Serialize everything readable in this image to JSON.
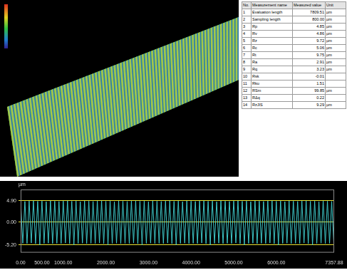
{
  "table": {
    "header": [
      "No.",
      "Measurement name",
      "Measured value",
      "Unit"
    ],
    "rows": [
      [
        "1",
        "Evaluation length",
        "7809.51",
        "µm"
      ],
      [
        "2",
        "Sampling length",
        "800.00",
        "µm"
      ],
      [
        "3",
        "Rp",
        "4.85",
        "µm"
      ],
      [
        "4",
        "Rv",
        "4.86",
        "µm"
      ],
      [
        "5",
        "Rz",
        "9.72",
        "µm"
      ],
      [
        "6",
        "Rc",
        "5.06",
        "µm"
      ],
      [
        "7",
        "Rt",
        "9.75",
        "µm"
      ],
      [
        "8",
        "Ra",
        "2.91",
        "µm"
      ],
      [
        "9",
        "Rq",
        "3.23",
        "µm"
      ],
      [
        "10",
        "Rsk",
        "-0.01"
      ],
      [
        "11",
        "Rku",
        "1.51"
      ],
      [
        "12",
        "RSm",
        "99.85",
        "µm"
      ],
      [
        "13",
        "RΔq",
        "0.22"
      ],
      [
        "14",
        "RzJIS",
        "9.29",
        "µm"
      ]
    ]
  },
  "chart_data": {
    "type": "line",
    "y_label": "µm",
    "color": "#3fc8c8",
    "grid": true,
    "x": [
      0,
      50,
      100,
      150,
      200,
      250,
      300,
      350,
      400,
      450,
      500,
      550,
      600,
      650,
      700,
      750,
      800,
      850,
      900,
      950,
      1000,
      1050,
      1100,
      1150,
      1200,
      1250,
      1300,
      1350,
      1400,
      1450,
      1500,
      1550,
      1600,
      1650,
      1700,
      1750,
      1800,
      1850,
      1900,
      1950,
      2000,
      2050,
      2100,
      2150,
      2200,
      2250,
      2300,
      2350,
      2400,
      2450,
      2500,
      2550,
      2600,
      2650,
      2700,
      2750,
      2800,
      2850,
      2900,
      2950,
      3000,
      3050,
      3100,
      3150,
      3200,
      3250,
      3300,
      3350,
      3400,
      3450,
      3500,
      3550,
      3600,
      3650,
      3700,
      3750,
      3800,
      3850,
      3900,
      3950,
      4000,
      4050,
      4100,
      4150,
      4200,
      4250,
      4300,
      4350,
      4400,
      4450,
      4500,
      4550,
      4600,
      4650,
      4700,
      4750,
      4800,
      4850,
      4900,
      4950,
      5000,
      5050,
      5100,
      5150,
      5200,
      5250,
      5300,
      5350,
      5400,
      5450,
      5500,
      5550,
      5600,
      5650,
      5700,
      5750,
      5800,
      5850,
      5900,
      5950,
      6000,
      6050,
      6100,
      6150,
      6200,
      6250,
      6300,
      6350,
      6400,
      6450,
      6500,
      6550,
      6600,
      6650,
      6700,
      6750,
      6800,
      6850,
      6900,
      6950,
      7000,
      7050,
      7100,
      7150,
      7200,
      7250,
      7300,
      7350
    ],
    "values": [
      4.82,
      -4.86,
      4.76,
      -4.9,
      4.85,
      -4.8,
      4.9,
      -4.95,
      4.79,
      -5.2,
      4.84,
      -4.88,
      4.71,
      -4.83,
      4.88,
      -4.92,
      4.82,
      -4.86,
      4.76,
      -4.9,
      4.85,
      -4.8,
      4.9,
      -4.95,
      4.79,
      -5.2,
      4.84,
      -4.88,
      4.71,
      -4.83,
      4.88,
      -4.92,
      4.82,
      -4.86,
      4.76,
      -4.9,
      4.85,
      -4.8,
      4.9,
      -4.95,
      4.79,
      -5.2,
      4.84,
      -4.88,
      4.71,
      -4.83,
      4.88,
      -4.92,
      4.82,
      -4.86,
      4.76,
      -4.9,
      4.85,
      -4.8,
      4.9,
      -4.95,
      4.79,
      -5.2,
      4.84,
      -4.88,
      4.71,
      -4.83,
      4.88,
      -4.92,
      4.82,
      -4.86,
      4.76,
      -4.9,
      4.85,
      -4.8,
      4.9,
      -4.95,
      4.79,
      -5.2,
      4.84,
      -4.88,
      4.71,
      -4.83,
      4.88,
      -4.92,
      4.82,
      -4.86,
      4.76,
      -4.9,
      4.85,
      -4.8,
      4.9,
      -4.95,
      4.79,
      -5.2,
      4.84,
      -4.88,
      4.71,
      -4.83,
      4.88,
      -4.92,
      4.82,
      -4.86,
      4.76,
      -4.9,
      4.85,
      -4.8,
      4.9,
      -4.95,
      4.79,
      -5.2,
      4.84,
      -4.88,
      4.71,
      -4.83,
      4.88,
      -4.92,
      4.82,
      -4.86,
      4.76,
      -4.9,
      4.85,
      -4.8,
      4.9,
      -4.95,
      4.79,
      -5.2,
      4.84,
      -4.88,
      4.71,
      -4.83,
      4.88,
      -4.92,
      4.82,
      -4.86,
      4.76,
      -4.9,
      4.85,
      -4.8,
      4.9,
      -4.95,
      4.79,
      -5.2,
      4.84,
      -4.88,
      4.71,
      -4.83,
      4.88,
      -4.92,
      4.82,
      -4.86,
      4.76,
      -4.9
    ],
    "xlim": [
      0,
      7357.88
    ],
    "ylim": [
      -7,
      7.5
    ],
    "xticks": [
      {
        "value": 0,
        "label": "0.00"
      },
      {
        "value": 500,
        "label": "500.00"
      },
      {
        "value": 1000,
        "label": "1000.00"
      },
      {
        "value": 2000,
        "label": "2000.00"
      },
      {
        "value": 3000,
        "label": "3000.00"
      },
      {
        "value": 4000,
        "label": "4000.00"
      },
      {
        "value": 5000,
        "label": "5000.00"
      },
      {
        "value": 6000,
        "label": "6000.00"
      },
      {
        "value": 7357.88,
        "label": "7357.88"
      }
    ],
    "yticks": [
      {
        "value": -5.2,
        "label": "-5.20"
      },
      {
        "value": 0,
        "label": "0.00"
      },
      {
        "value": 4.9,
        "label": "4.90"
      }
    ]
  }
}
